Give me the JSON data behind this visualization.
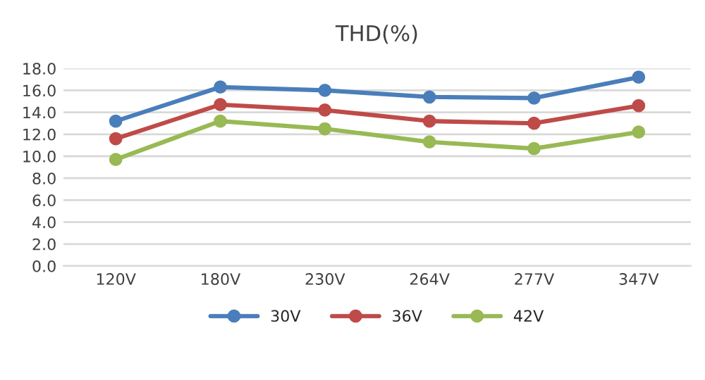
{
  "chart_data": {
    "type": "line",
    "title": "THD(%)",
    "categories": [
      "120V",
      "180V",
      "230V",
      "264V",
      "277V",
      "347V"
    ],
    "series": [
      {
        "name": "30V",
        "color": "#4a7ebb",
        "values": [
          13.2,
          16.3,
          16.0,
          15.4,
          15.3,
          17.2
        ]
      },
      {
        "name": "36V",
        "color": "#be4b48",
        "values": [
          11.6,
          14.7,
          14.2,
          13.2,
          13.0,
          14.6
        ]
      },
      {
        "name": "42V",
        "color": "#98b954",
        "values": [
          9.7,
          13.2,
          12.5,
          11.3,
          10.7,
          12.2
        ]
      }
    ],
    "ylim": [
      0,
      18
    ],
    "yticks": [
      {
        "value": 0,
        "label": "0.0"
      },
      {
        "value": 2,
        "label": "2.0"
      },
      {
        "value": 4,
        "label": "4.0"
      },
      {
        "value": 6,
        "label": "6.0"
      },
      {
        "value": 8,
        "label": "8.0"
      },
      {
        "value": 10,
        "label": "10.0"
      },
      {
        "value": 12,
        "label": "12.0"
      },
      {
        "value": 14,
        "label": "14.0"
      },
      {
        "value": 16,
        "label": "16.0"
      },
      {
        "value": 18,
        "label": "18.0"
      }
    ],
    "grid": "y",
    "legend": "bottom",
    "marker": "circle",
    "line_style": "solid"
  }
}
